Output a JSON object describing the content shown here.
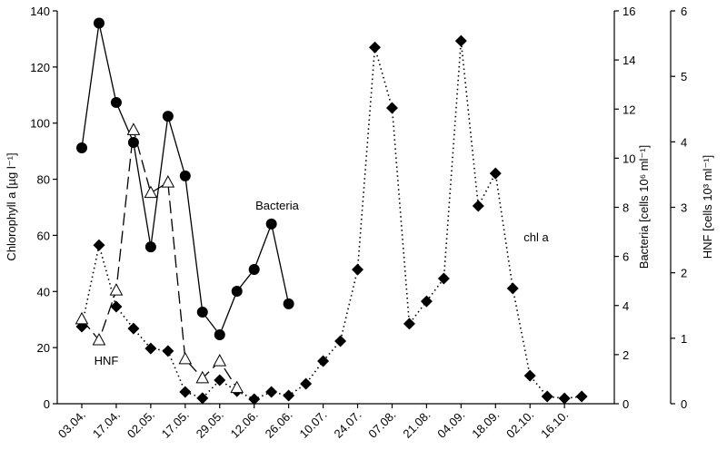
{
  "chart_data": {
    "type": "line",
    "y_label": "Chlorophyll a [µg l⁻¹]",
    "y2_label": "Bacteria [cells 10⁶ ml⁻¹]",
    "y3_label": "HNF [cells 10³ ml⁻¹]",
    "annotations": [
      "Bacteria",
      "chl a",
      "HNF"
    ],
    "categories": [
      "03.04.",
      null,
      "17.04.",
      null,
      "02.05.",
      null,
      "17.05.",
      null,
      "29.05.",
      null,
      "12.06.",
      null,
      "26.06.",
      null,
      "10.07.",
      null,
      "24.07.",
      null,
      "07.08.",
      null,
      "21.08.",
      null,
      "04.09.",
      null,
      "18.09.",
      null,
      "02.10.",
      null,
      "16.10.",
      null
    ],
    "ylim": [
      0,
      140
    ],
    "yticks": [
      0,
      20,
      40,
      60,
      80,
      100,
      120,
      140
    ],
    "y2lim": [
      0,
      16
    ],
    "y2ticks": [
      0,
      2,
      4,
      6,
      8,
      10,
      12,
      14,
      16
    ],
    "y3lim": [
      0,
      6
    ],
    "y3ticks": [
      0,
      1,
      2,
      3,
      4,
      5,
      6
    ],
    "series": [
      {
        "name": "chl a",
        "color": "#000000",
        "marker": "diamond",
        "dash": "dotted",
        "values": [
          27.5,
          56.5,
          34.6,
          26.8,
          19.7,
          18.8,
          4.2,
          2,
          8.4,
          4.5,
          1.6,
          4.2,
          2.9,
          7.1,
          15.2,
          22.3,
          47.8,
          127,
          105.4,
          28.5,
          36.5,
          44.6,
          129.3,
          70.5,
          82.1,
          41.1,
          10,
          2.6,
          1.9,
          2.6
        ]
      },
      {
        "name": "Bacteria",
        "color": "#000000",
        "marker": "circle",
        "dash": "solid",
        "axis": "y2",
        "values": [
          10.42,
          15.5,
          12.27,
          10.64,
          6.39,
          11.71,
          9.28,
          3.73,
          2.81,
          4.58,
          5.47,
          7.32,
          4.07,
          null,
          null,
          null,
          null,
          null,
          null,
          null,
          null,
          null,
          null,
          null,
          null,
          null,
          null,
          null,
          null,
          null
        ]
      },
      {
        "name": "HNF",
        "color": "#000000",
        "marker": "triangle",
        "dash": "dashed",
        "axis": "y3",
        "values": [
          1.29,
          0.97,
          1.73,
          4.18,
          3.22,
          3.38,
          0.68,
          0.39,
          0.65,
          0.24,
          null,
          null,
          null,
          null,
          null,
          null,
          null,
          null,
          null,
          null,
          null,
          null,
          null,
          null,
          null,
          null,
          null,
          null,
          null,
          null
        ]
      }
    ]
  }
}
